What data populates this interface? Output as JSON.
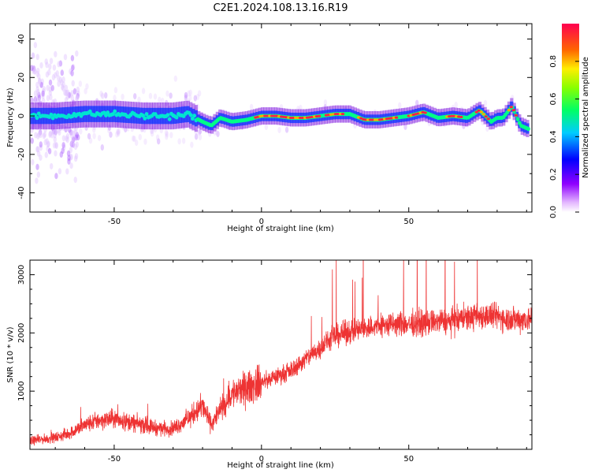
{
  "title": "C2E1.2024.108.13.16.R19",
  "chart_data": [
    {
      "type": "heatmap",
      "xlabel": "Height of straight line (km)",
      "ylabel": "Frequency (Hz)",
      "xlim": [
        -78.6,
        91.8
      ],
      "ylim": [
        -50,
        48
      ],
      "xticks": [
        -50,
        0,
        50
      ],
      "yticks": [
        -40,
        -20,
        0,
        20,
        40
      ],
      "x_tick_labels": [
        "-50",
        "0",
        "50"
      ],
      "y_tick_labels": [
        "-40",
        "-20",
        "0",
        "20",
        "40"
      ],
      "colorbar": {
        "label": "Normalized spectral amplitude",
        "range": [
          0.0,
          1.0
        ],
        "ticks": [
          0.0,
          0.2,
          0.4,
          0.6,
          0.8
        ],
        "tick_labels": [
          "0.0",
          "0.2",
          "0.4",
          "0.6",
          "0.8"
        ],
        "colormap": "rainbow (white-violet-blue-cyan-green-yellow-orange-red)"
      },
      "ridge": {
        "x": [
          -78,
          -70,
          -60,
          -50,
          -40,
          -30,
          -25,
          -20,
          -17,
          -14,
          -10,
          -5,
          0,
          5,
          10,
          15,
          20,
          25,
          30,
          35,
          40,
          45,
          50,
          55,
          60,
          65,
          70,
          74,
          78,
          80,
          82,
          85,
          88,
          91
        ],
        "freq_hz": [
          0,
          0,
          1,
          1,
          0,
          0,
          1,
          -3,
          -5,
          -1,
          -3,
          -2,
          0,
          0,
          -1,
          -1,
          0,
          1,
          1,
          -2,
          -2,
          -1,
          0,
          2,
          -1,
          0,
          -1,
          3,
          -3,
          -1,
          -1,
          5,
          -5,
          -7
        ]
      },
      "grid": false
    },
    {
      "type": "line",
      "xlabel": "Height of straight line (km)",
      "ylabel": "SNR (10 * v/v)",
      "xlim": [
        -78.6,
        91.8
      ],
      "ylim": [
        0,
        3250
      ],
      "xticks": [
        -50,
        0,
        50
      ],
      "yticks": [
        1000,
        2000,
        3000
      ],
      "x_tick_labels": [
        "-50",
        "0",
        "50"
      ],
      "y_tick_labels": [
        "1000",
        "2000",
        "3000"
      ],
      "color": "#ee3333",
      "series": [
        {
          "x": [
            -78,
            -70,
            -65,
            -60,
            -55,
            -50,
            -45,
            -40,
            -35,
            -30,
            -25,
            -20,
            -17,
            -15,
            -10,
            -5,
            0,
            5,
            10,
            15,
            20,
            25,
            30,
            35,
            40,
            45,
            50,
            55,
            60,
            65,
            70,
            75,
            80,
            85,
            90
          ],
          "values": [
            150,
            200,
            280,
            420,
            500,
            520,
            470,
            420,
            360,
            360,
            520,
            750,
            420,
            600,
            950,
            1050,
            1150,
            1250,
            1350,
            1550,
            1750,
            1950,
            2020,
            2080,
            2120,
            2150,
            2150,
            2170,
            2200,
            2200,
            2260,
            2300,
            2280,
            2230,
            2240
          ]
        }
      ],
      "grid": false
    }
  ]
}
